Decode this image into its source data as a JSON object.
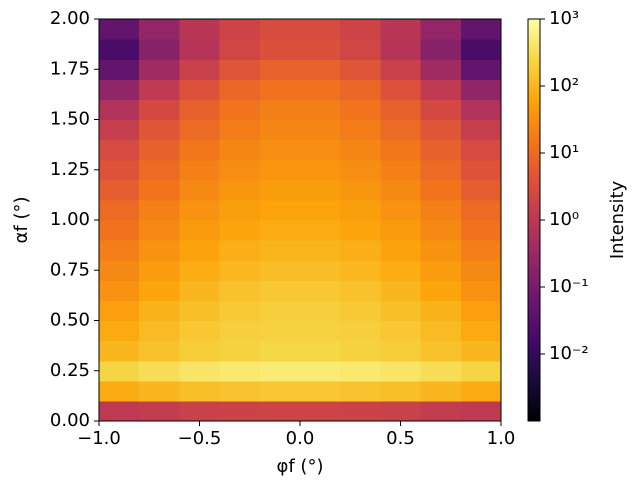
{
  "chart_data": {
    "type": "heatmap",
    "xlabel": "φf (°)",
    "ylabel": "αf (°)",
    "colorbar_label": "Intensity",
    "colormap": "inferno",
    "colorbar_log": true,
    "x": [
      -0.9,
      -0.7,
      -0.5,
      -0.3,
      -0.1,
      0.1,
      0.3,
      0.5,
      0.7,
      0.9
    ],
    "y": [
      0.05,
      0.15,
      0.25,
      0.35,
      0.45,
      0.55,
      0.65,
      0.75,
      0.85,
      0.95,
      1.05,
      1.15,
      1.25,
      1.35,
      1.45,
      1.55,
      1.65,
      1.75,
      1.85,
      1.95
    ],
    "z": [
      [
        1.1,
        1.4,
        1.7,
        1.9,
        2,
        2,
        1.9,
        1.7,
        1.4,
        1.1
      ],
      [
        76,
        100,
        130,
        145,
        160,
        160,
        145,
        130,
        100,
        76
      ],
      [
        240,
        320,
        400,
        460,
        500,
        500,
        460,
        400,
        320,
        240
      ],
      [
        100,
        140,
        190,
        220,
        250,
        250,
        220,
        190,
        140,
        100
      ],
      [
        72,
        115,
        160,
        200,
        220,
        220,
        200,
        160,
        115,
        72
      ],
      [
        54,
        91,
        130,
        170,
        200,
        200,
        170,
        130,
        91,
        54
      ],
      [
        35,
        65,
        100,
        135,
        160,
        160,
        135,
        100,
        65,
        35
      ],
      [
        26,
        48,
        78,
        105,
        122,
        122,
        105,
        78,
        48,
        26
      ],
      [
        19,
        36,
        59,
        83,
        98,
        98,
        83,
        59,
        36,
        19
      ],
      [
        13,
        27,
        46,
        65,
        78,
        78,
        65,
        46,
        27,
        13
      ],
      [
        10,
        20,
        35,
        51,
        62,
        62,
        51,
        35,
        20,
        10
      ],
      [
        6.5,
        14,
        26,
        40,
        49,
        49,
        40,
        26,
        14,
        6.5
      ],
      [
        4.3,
        10,
        20,
        31,
        39,
        39,
        31,
        20,
        10,
        4.3
      ],
      [
        2.8,
        7.2,
        15,
        24,
        31,
        31,
        24,
        15,
        7.2,
        2.8
      ],
      [
        1.5,
        4.6,
        10,
        18,
        24,
        24,
        18,
        10,
        4.6,
        1.5
      ],
      [
        0.7,
        2.6,
        7.1,
        14,
        19,
        19,
        14,
        7.1,
        2.6,
        0.7
      ],
      [
        0.23,
        1.2,
        4,
        8.9,
        13,
        13,
        8.9,
        4,
        1.2,
        0.23
      ],
      [
        0.05,
        0.38,
        1.7,
        4.6,
        7.4,
        7.4,
        4.6,
        1.7,
        0.38,
        0.05
      ],
      [
        0.02,
        0.17,
        0.8,
        2.2,
        3.7,
        3.7,
        2.2,
        0.8,
        0.17,
        0.02
      ],
      [
        0.05,
        0.26,
        0.9,
        2,
        3,
        3,
        2,
        0.9,
        0.26,
        0.05
      ]
    ],
    "xlim": [
      -1.0,
      1.0
    ],
    "ylim": [
      0.0,
      2.0
    ],
    "zlim": [
      0.001,
      1000
    ],
    "xticks": [
      {
        "value": -1.0,
        "label": "−1.0"
      },
      {
        "value": -0.5,
        "label": "−0.5"
      },
      {
        "value": 0.0,
        "label": "0.0"
      },
      {
        "value": 0.5,
        "label": "0.5"
      },
      {
        "value": 1.0,
        "label": "1.0"
      }
    ],
    "yticks": [
      {
        "value": 0,
        "label": "0.00"
      },
      {
        "value": 0.25,
        "label": "0.25"
      },
      {
        "value": 0.5,
        "label": "0.50"
      },
      {
        "value": 0.75,
        "label": "0.75"
      },
      {
        "value": 1.0,
        "label": "1.00"
      },
      {
        "value": 1.25,
        "label": "1.25"
      },
      {
        "value": 1.5,
        "label": "1.50"
      },
      {
        "value": 1.75,
        "label": "1.75"
      },
      {
        "value": 2.0,
        "label": "2.00"
      }
    ],
    "zticks": [
      {
        "value": 0.01,
        "label": "10⁻²"
      },
      {
        "value": 0.1,
        "label": "10⁻¹"
      },
      {
        "value": 1,
        "label": "10⁰"
      },
      {
        "value": 10,
        "label": "10¹"
      },
      {
        "value": 100,
        "label": "10²"
      },
      {
        "value": 1000,
        "label": "10³"
      }
    ]
  }
}
